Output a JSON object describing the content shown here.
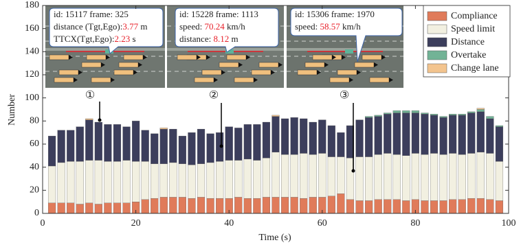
{
  "chart_data": {
    "type": "stacked_bar",
    "x_label": "Time (s)",
    "y_label": "Number",
    "xlim": [
      0,
      100
    ],
    "xticks": [
      0,
      20,
      40,
      60,
      80,
      100
    ],
    "ylim": [
      0,
      180
    ],
    "yticks": [
      0,
      20,
      40,
      60,
      80,
      100,
      120,
      140,
      160,
      180
    ],
    "legend": "upper right",
    "x": [
      2,
      4,
      6,
      8,
      10,
      12,
      14,
      16,
      18,
      20,
      22,
      24,
      26,
      28,
      30,
      32,
      34,
      36,
      38,
      40,
      42,
      44,
      46,
      48,
      50,
      52,
      54,
      56,
      58,
      60,
      62,
      64,
      66,
      68,
      70,
      72,
      74,
      76,
      78,
      80,
      82,
      84,
      86,
      88,
      90,
      92,
      94,
      96,
      98
    ],
    "series": [
      {
        "name": "Compliance",
        "color": "#e07b5a",
        "values": [
          9,
          9,
          9,
          8,
          9,
          8,
          9,
          9,
          9,
          10,
          12,
          13,
          14,
          14,
          14,
          13,
          14,
          13,
          13,
          13,
          14,
          13,
          13,
          14,
          14,
          14,
          14,
          13,
          14,
          14,
          15,
          17,
          12,
          11,
          11,
          12,
          12,
          12,
          11,
          12,
          11,
          11,
          11,
          12,
          12,
          13,
          13,
          12,
          11
        ]
      },
      {
        "name": "Speed limit",
        "color": "#f2f0e1",
        "values": [
          32,
          35,
          36,
          37,
          37,
          38,
          36,
          36,
          37,
          35,
          33,
          30,
          29,
          30,
          29,
          29,
          29,
          31,
          32,
          33,
          32,
          34,
          33,
          34,
          39,
          37,
          37,
          39,
          37,
          38,
          34,
          32,
          36,
          38,
          38,
          39,
          40,
          39,
          39,
          40,
          40,
          41,
          40,
          40,
          39,
          39,
          40,
          40,
          34
        ]
      },
      {
        "name": "Distance",
        "color": "#3c3e5c",
        "values": [
          26,
          28,
          27,
          30,
          35,
          33,
          32,
          32,
          29,
          35,
          27,
          26,
          30,
          29,
          24,
          28,
          30,
          25,
          25,
          29,
          28,
          30,
          31,
          31,
          31,
          31,
          32,
          30,
          28,
          29,
          27,
          21,
          28,
          32,
          34,
          33,
          34,
          36,
          37,
          35,
          35,
          33,
          32,
          33,
          34,
          35,
          35,
          30,
          30
        ]
      },
      {
        "name": "Overtake",
        "color": "#72b396",
        "values": [
          0,
          0,
          0,
          0,
          0,
          0,
          0,
          0,
          0,
          0,
          0,
          0,
          0,
          0,
          0,
          0,
          0,
          0,
          0,
          0,
          0,
          0,
          0,
          0,
          0,
          0,
          0,
          0,
          0,
          0,
          0,
          0,
          0,
          0,
          1,
          1,
          1,
          2,
          2,
          2,
          1,
          1,
          1,
          1,
          1,
          1,
          2,
          2,
          1
        ]
      },
      {
        "name": "Change lane",
        "color": "#f3c48e",
        "values": [
          0,
          0,
          0,
          0,
          1,
          0,
          0,
          0,
          0,
          0,
          0,
          0,
          1,
          0,
          0,
          0,
          0,
          0,
          0,
          0,
          0,
          0,
          0,
          0,
          1,
          0,
          0,
          0,
          0,
          0,
          0,
          0,
          0,
          0,
          0,
          0,
          0,
          0,
          0,
          0,
          0,
          0,
          0,
          0,
          0,
          0,
          1,
          0,
          0
        ]
      }
    ],
    "callouts": [
      {
        "marker": "①",
        "lines": [
          [
            "id: 15117 frame: 325"
          ],
          [
            "distance (Tgt,Ego):",
            "3.77",
            " m"
          ],
          [
            "TTCX(Tgt,Ego):",
            "2.23",
            " s"
          ]
        ]
      },
      {
        "marker": "②",
        "lines": [
          [
            "id: 15228 frame: 1113"
          ],
          [
            "speed: ",
            "70.24",
            " km/h"
          ],
          [
            "distance: ",
            "8.12",
            " m"
          ]
        ]
      },
      {
        "marker": "③",
        "lines": [
          [
            "id: 15306 frame: 1970"
          ],
          [
            "speed: ",
            "58.57",
            " km/h"
          ]
        ]
      }
    ]
  }
}
